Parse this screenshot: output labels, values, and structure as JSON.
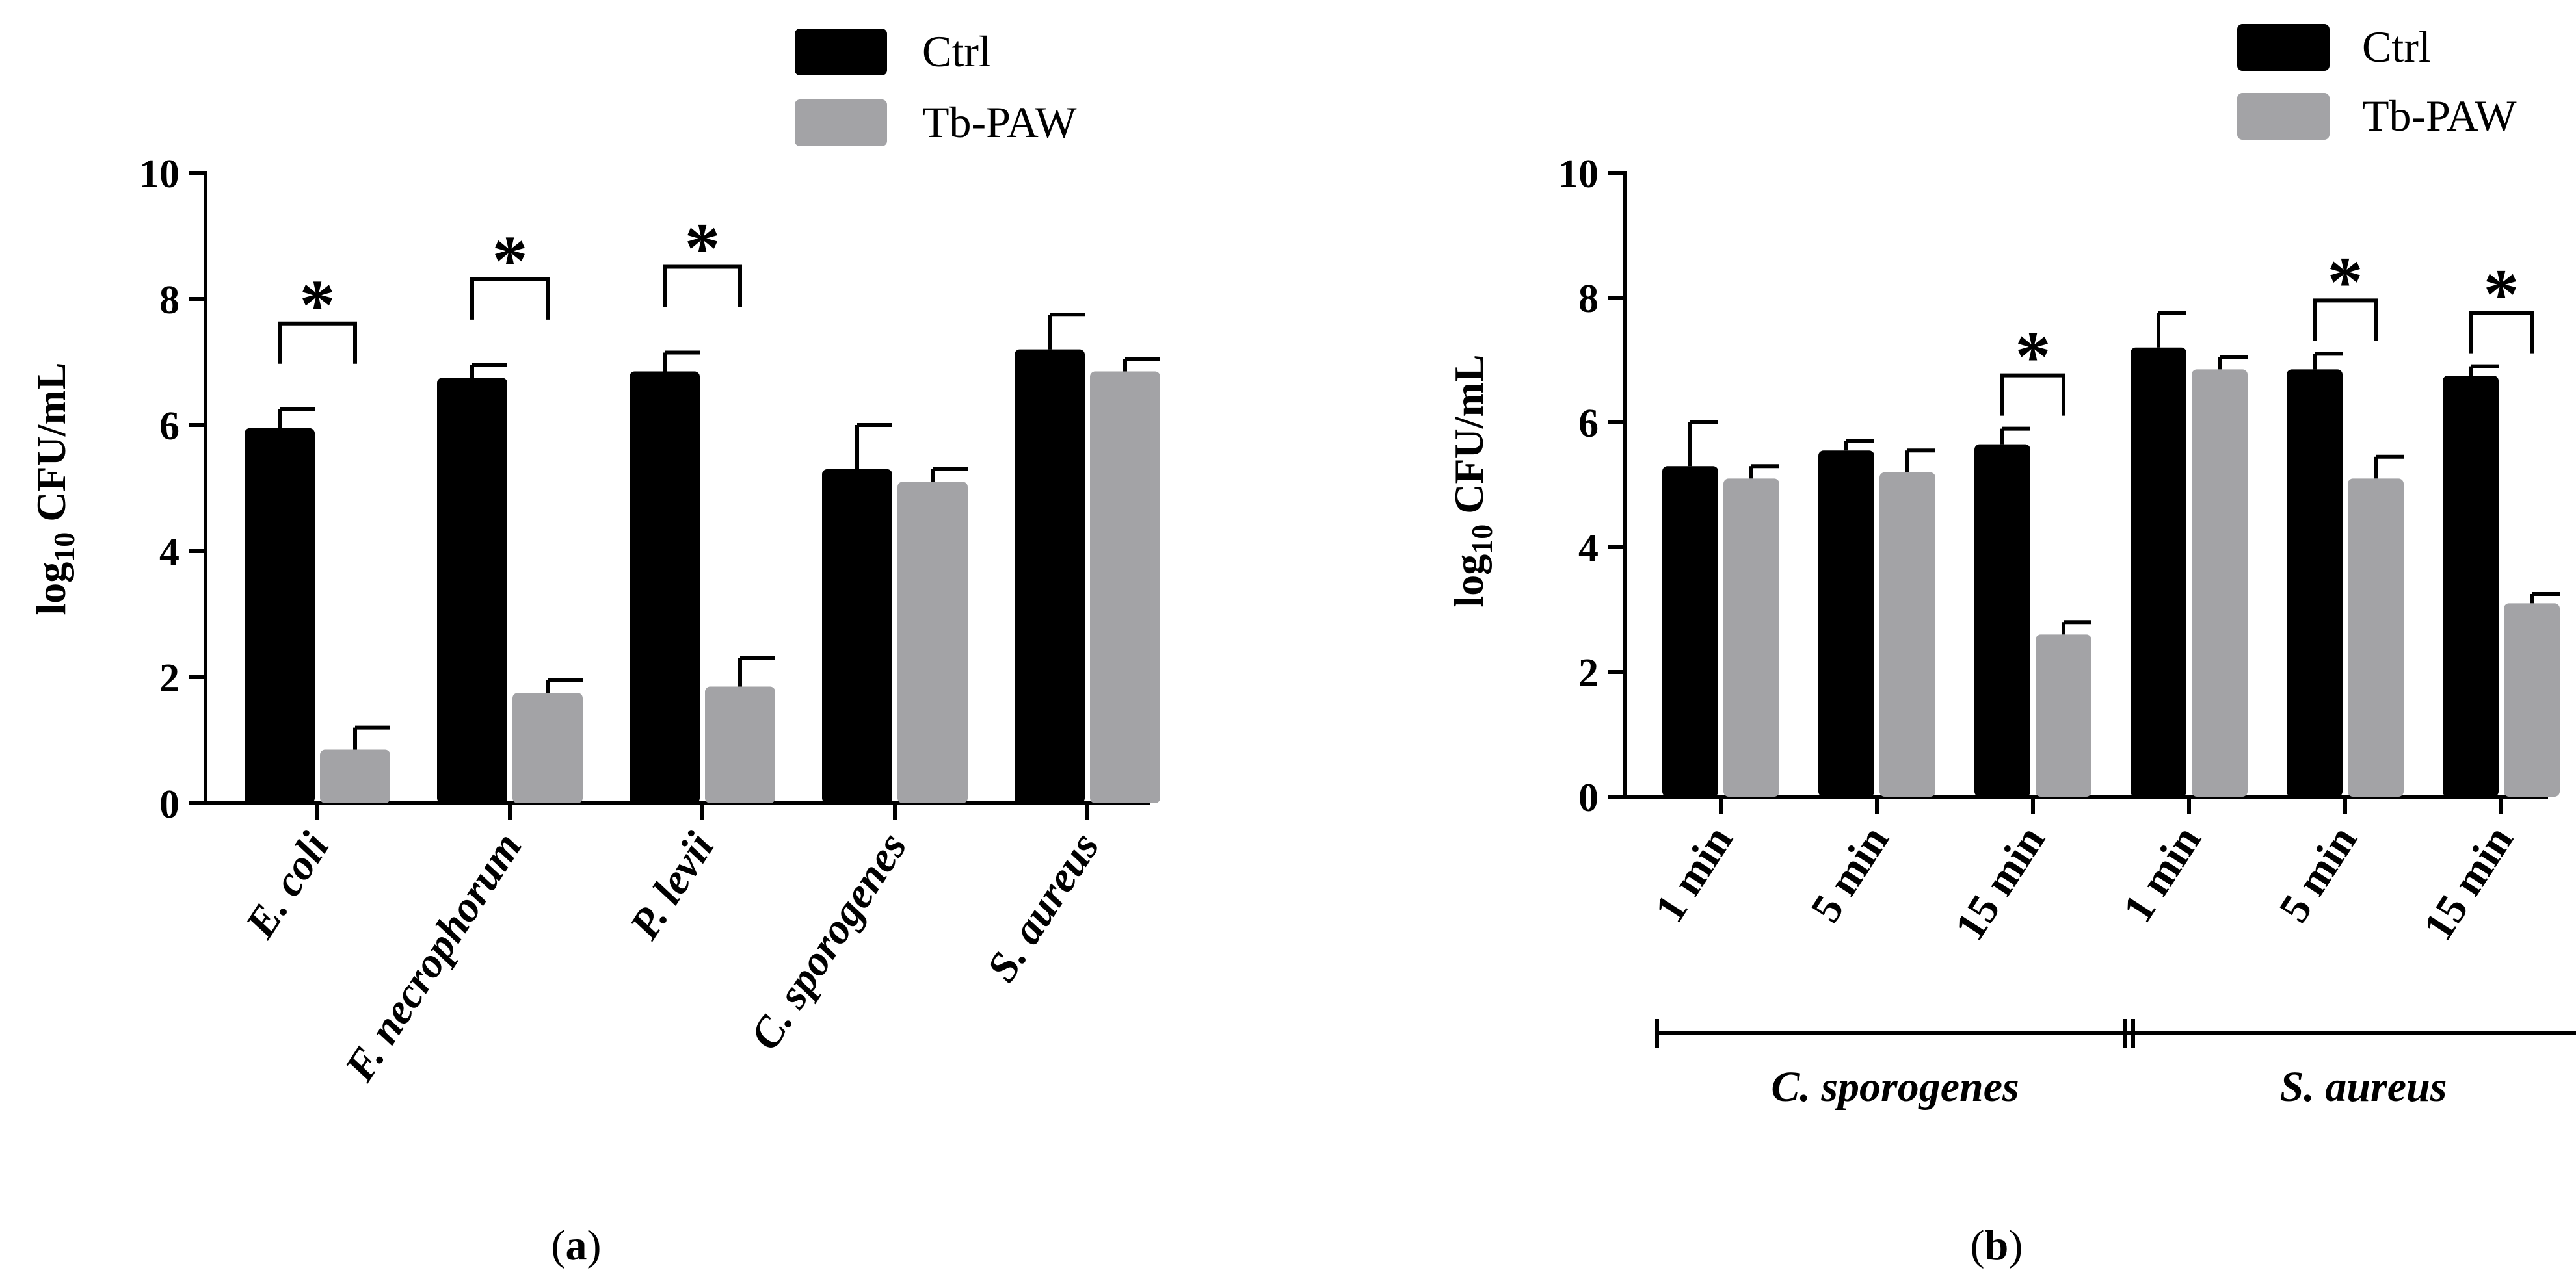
{
  "chart_data": [
    {
      "type": "bar",
      "panel": "a",
      "categories": [
        "E. coli",
        "F. necrophorum",
        "P. levii",
        "C. sporogenes",
        "S. aureus"
      ],
      "series": [
        {
          "name": "Ctrl",
          "color": "#000000",
          "values": [
            5.95,
            6.75,
            6.85,
            5.3,
            7.2
          ],
          "errors": [
            0.3,
            0.2,
            0.3,
            0.7,
            0.55
          ]
        },
        {
          "name": "Tb-PAW",
          "color": "#a3a3a6",
          "values": [
            0.85,
            1.75,
            1.85,
            5.1,
            6.85
          ],
          "errors": [
            0.35,
            0.2,
            0.45,
            0.2,
            0.2
          ]
        }
      ],
      "significant": [
        true,
        true,
        true,
        false,
        false
      ],
      "significance_marker": "*",
      "ylabel_main": "log",
      "ylabel_sub": "10",
      "ylabel_rest": " CFU/mL",
      "ylim": [
        0,
        10
      ],
      "yticks": [
        0,
        2,
        4,
        6,
        8,
        10
      ],
      "caption_open": "(",
      "caption_letter": "a",
      "caption_close": ")"
    },
    {
      "type": "bar",
      "panel": "b",
      "categories": [
        "1 min",
        "5 min",
        "15 min",
        "1 min",
        "5 min",
        "15 min"
      ],
      "groups": [
        {
          "label": "C. sporogenes",
          "start": 0,
          "end": 2
        },
        {
          "label": "S. aureus",
          "start": 3,
          "end": 5
        }
      ],
      "series": [
        {
          "name": "Ctrl",
          "color": "#000000",
          "values": [
            5.3,
            5.55,
            5.65,
            7.2,
            6.85,
            6.75
          ],
          "errors": [
            0.7,
            0.15,
            0.25,
            0.55,
            0.25,
            0.15
          ]
        },
        {
          "name": "Tb-PAW",
          "color": "#a3a3a6",
          "values": [
            5.1,
            5.2,
            2.6,
            6.85,
            5.1,
            3.1
          ],
          "errors": [
            0.2,
            0.35,
            0.2,
            0.2,
            0.35,
            0.15
          ]
        }
      ],
      "significant": [
        false,
        false,
        true,
        false,
        true,
        true
      ],
      "significance_marker": "*",
      "ylabel_main": "log",
      "ylabel_sub": "10",
      "ylabel_rest": " CFU/mL",
      "ylim": [
        0,
        10
      ],
      "yticks": [
        0,
        2,
        4,
        6,
        8,
        10
      ],
      "caption_open": "(",
      "caption_letter": "b",
      "caption_close": ")"
    }
  ]
}
